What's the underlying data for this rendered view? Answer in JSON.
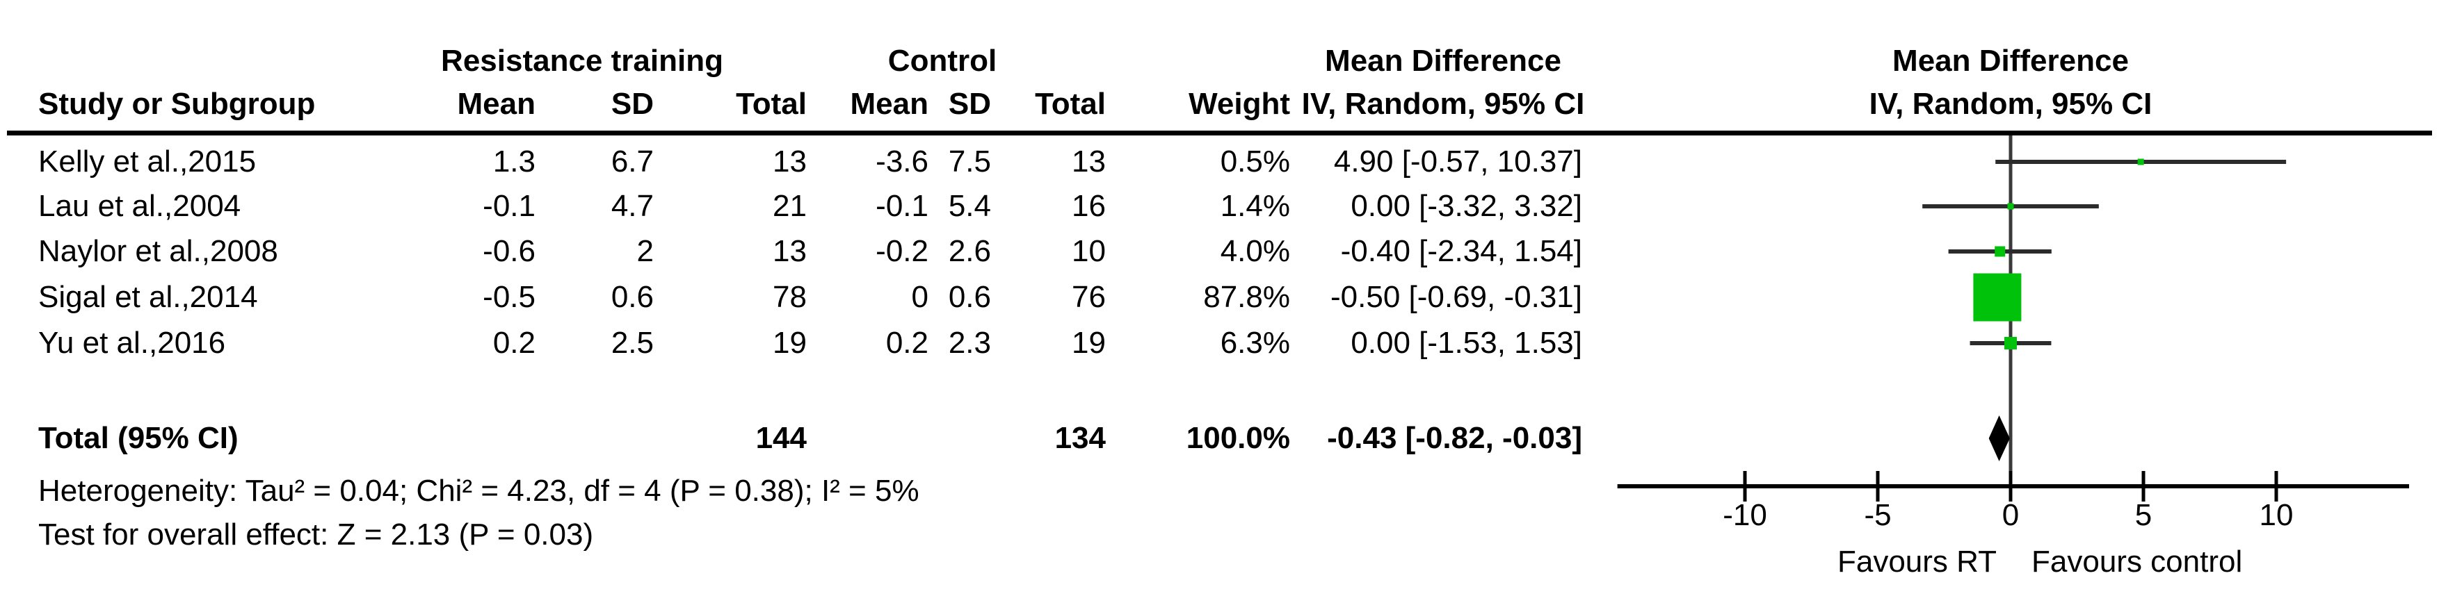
{
  "header": {
    "group_rt": "Resistance training",
    "group_control": "Control",
    "md_line1": "Mean Difference",
    "md_line2": "IV, Random, 95% CI",
    "study": "Study or Subgroup",
    "mean": "Mean",
    "sd": "SD",
    "total": "Total",
    "weight": "Weight"
  },
  "chart_data": {
    "type": "forest",
    "effect_measure": "Mean Difference",
    "method": "IV, Random, 95% CI",
    "studies": [
      {
        "label": "Kelly et al.,2015",
        "rt_mean": "1.3",
        "rt_sd": "6.7",
        "rt_total": "13",
        "c_mean": "-3.6",
        "c_sd": "7.5",
        "c_total": "13",
        "weight": "0.5%",
        "weight_pct": 0.5,
        "est": 4.9,
        "ci_low": -0.57,
        "ci_high": 10.37,
        "ci_text": "4.90 [-0.57, 10.37]"
      },
      {
        "label": "Lau et al.,2004",
        "rt_mean": "-0.1",
        "rt_sd": "4.7",
        "rt_total": "21",
        "c_mean": "-0.1",
        "c_sd": "5.4",
        "c_total": "16",
        "weight": "1.4%",
        "weight_pct": 1.4,
        "est": 0.0,
        "ci_low": -3.32,
        "ci_high": 3.32,
        "ci_text": "0.00 [-3.32, 3.32]"
      },
      {
        "label": "Naylor et al.,2008",
        "rt_mean": "-0.6",
        "rt_sd": "2",
        "rt_total": "13",
        "c_mean": "-0.2",
        "c_sd": "2.6",
        "c_total": "10",
        "weight": "4.0%",
        "weight_pct": 4.0,
        "est": -0.4,
        "ci_low": -2.34,
        "ci_high": 1.54,
        "ci_text": "-0.40 [-2.34, 1.54]"
      },
      {
        "label": "Sigal et al.,2014",
        "rt_mean": "-0.5",
        "rt_sd": "0.6",
        "rt_total": "78",
        "c_mean": "0",
        "c_sd": "0.6",
        "c_total": "76",
        "weight": "87.8%",
        "weight_pct": 87.8,
        "est": -0.5,
        "ci_low": -0.69,
        "ci_high": -0.31,
        "ci_text": "-0.50 [-0.69, -0.31]"
      },
      {
        "label": "Yu et al.,2016",
        "rt_mean": "0.2",
        "rt_sd": "2.5",
        "rt_total": "19",
        "c_mean": "0.2",
        "c_sd": "2.3",
        "c_total": "19",
        "weight": "6.3%",
        "weight_pct": 6.3,
        "est": 0.0,
        "ci_low": -1.53,
        "ci_high": 1.53,
        "ci_text": "0.00 [-1.53, 1.53]"
      }
    ],
    "total": {
      "label": "Total (95% CI)",
      "rt_total": "144",
      "c_total": "134",
      "weight": "100.0%",
      "est": -0.43,
      "ci_low": -0.82,
      "ci_high": -0.03,
      "ci_text": "-0.43 [-0.82, -0.03]"
    },
    "x_ticks": [
      -10,
      -5,
      0,
      5,
      10
    ],
    "xlim": [
      -14.8,
      15.0
    ],
    "favours_left": "Favours RT",
    "favours_right": "Favours control"
  },
  "footnotes": {
    "heterogeneity": "Heterogeneity: Tau² = 0.04; Chi² = 4.23, df = 4 (P = 0.38); I² = 5%",
    "overall_effect": "Test for overall effect: Z = 2.13 (P = 0.03)"
  },
  "colors": {
    "marker": "#00c20a",
    "ci_bar": "#2b2b2b",
    "zero_line": "#3a3a3a",
    "axis": "#000000",
    "diamond": "#000000",
    "rule": "#000000",
    "text": "#000000"
  }
}
